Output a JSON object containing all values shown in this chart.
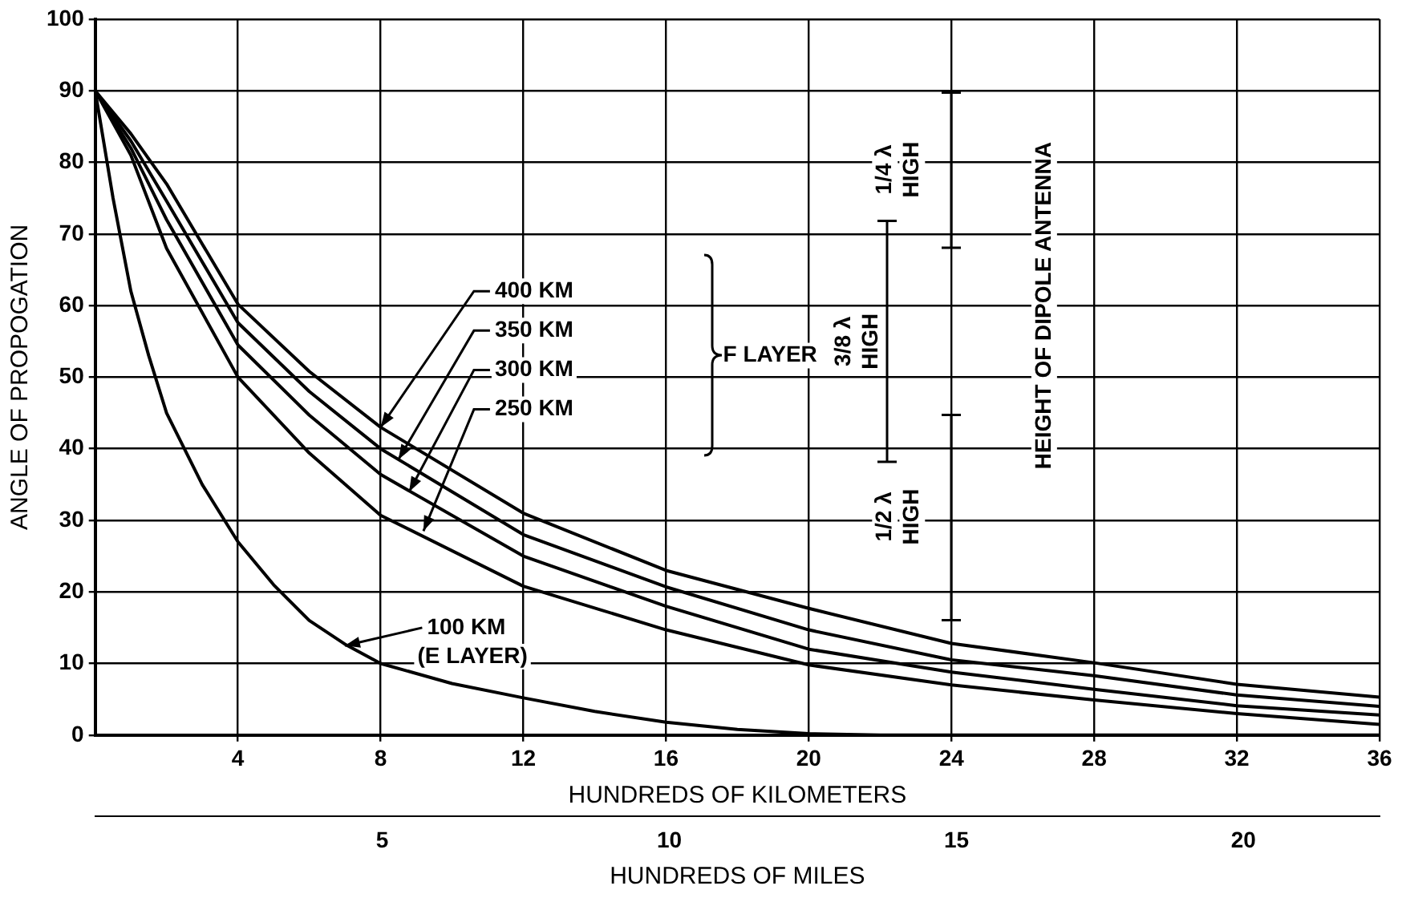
{
  "chart_data": {
    "type": "line",
    "xlabel": "HUNDREDS OF KILOMETERS",
    "ylabel": "ANGLE OF PROPOGATION",
    "x2label": "HUNDREDS OF MILES",
    "xlim": [
      0,
      36
    ],
    "xticks": [
      4,
      8,
      12,
      16,
      20,
      24,
      28,
      32,
      36
    ],
    "x2lim": [
      0,
      22.37
    ],
    "x2ticks": [
      5,
      10,
      15,
      20
    ],
    "ylim": [
      0,
      100
    ],
    "yticks": [
      0,
      10,
      20,
      30,
      40,
      50,
      60,
      70,
      80,
      90,
      100
    ],
    "grid": true,
    "legend": false,
    "marker": "none",
    "line_style": "solid",
    "series": [
      {
        "color": "#000000",
        "x": [
          0,
          1,
          2,
          4,
          6,
          8,
          12,
          16,
          20,
          24,
          28,
          32,
          36
        ],
        "values": [
          90,
          84,
          77,
          60.2,
          50.8,
          43,
          31,
          23,
          17.7,
          12.8,
          10.1,
          7.1,
          5.3
        ]
      },
      {
        "color": "#000000",
        "x": [
          0,
          1,
          2,
          4,
          6,
          8,
          12,
          16,
          20,
          24,
          28,
          32,
          36
        ],
        "values": [
          90,
          83,
          74.6,
          57.6,
          48,
          40,
          28,
          20.7,
          14.7,
          10.5,
          8.3,
          5.6,
          4
        ]
      },
      {
        "color": "#000000",
        "x": [
          0,
          1,
          2,
          4,
          6,
          8,
          12,
          16,
          20,
          24,
          28,
          32,
          36
        ],
        "values": [
          90,
          82,
          72,
          54.5,
          44.7,
          36.4,
          25,
          18,
          12,
          8.8,
          6.4,
          4.1,
          2.8
        ]
      },
      {
        "color": "#000000",
        "x": [
          0,
          1,
          2,
          4,
          6,
          8,
          12,
          16,
          20,
          24,
          28,
          32,
          36
        ],
        "values": [
          90,
          81,
          68,
          50,
          39.4,
          30.7,
          20.8,
          14.7,
          9.8,
          7,
          4.9,
          3,
          1.5
        ]
      },
      {
        "color": "#000000",
        "x": [
          0,
          0.5,
          1,
          1.5,
          2,
          3,
          4,
          5,
          6,
          7,
          8,
          10,
          12,
          14,
          16,
          18,
          20,
          22,
          36
        ],
        "values": [
          90,
          75,
          62,
          53,
          45,
          35,
          27,
          21,
          16,
          12.7,
          10,
          7.2,
          5.2,
          3.3,
          1.8,
          0.8,
          0.2,
          0,
          0
        ]
      }
    ],
    "annotations": [
      {
        "text": "400 KM",
        "x": 8,
        "y": 43
      },
      {
        "text": "350 KM",
        "x": 8.5,
        "y": 38.5
      },
      {
        "text": "300 KM",
        "x": 8.8,
        "y": 34
      },
      {
        "text": "250 KM",
        "x": 9.2,
        "y": 28.5
      },
      "F LAYER",
      {
        "text": "100 KM (E LAYER)",
        "x": 7,
        "y": 12.5
      },
      "HEIGHT OF DIPOLE ANTENNA",
      "1/4 λ HIGH",
      "3/8 λ HIGH",
      "1/2 λ HIGH"
    ]
  }
}
